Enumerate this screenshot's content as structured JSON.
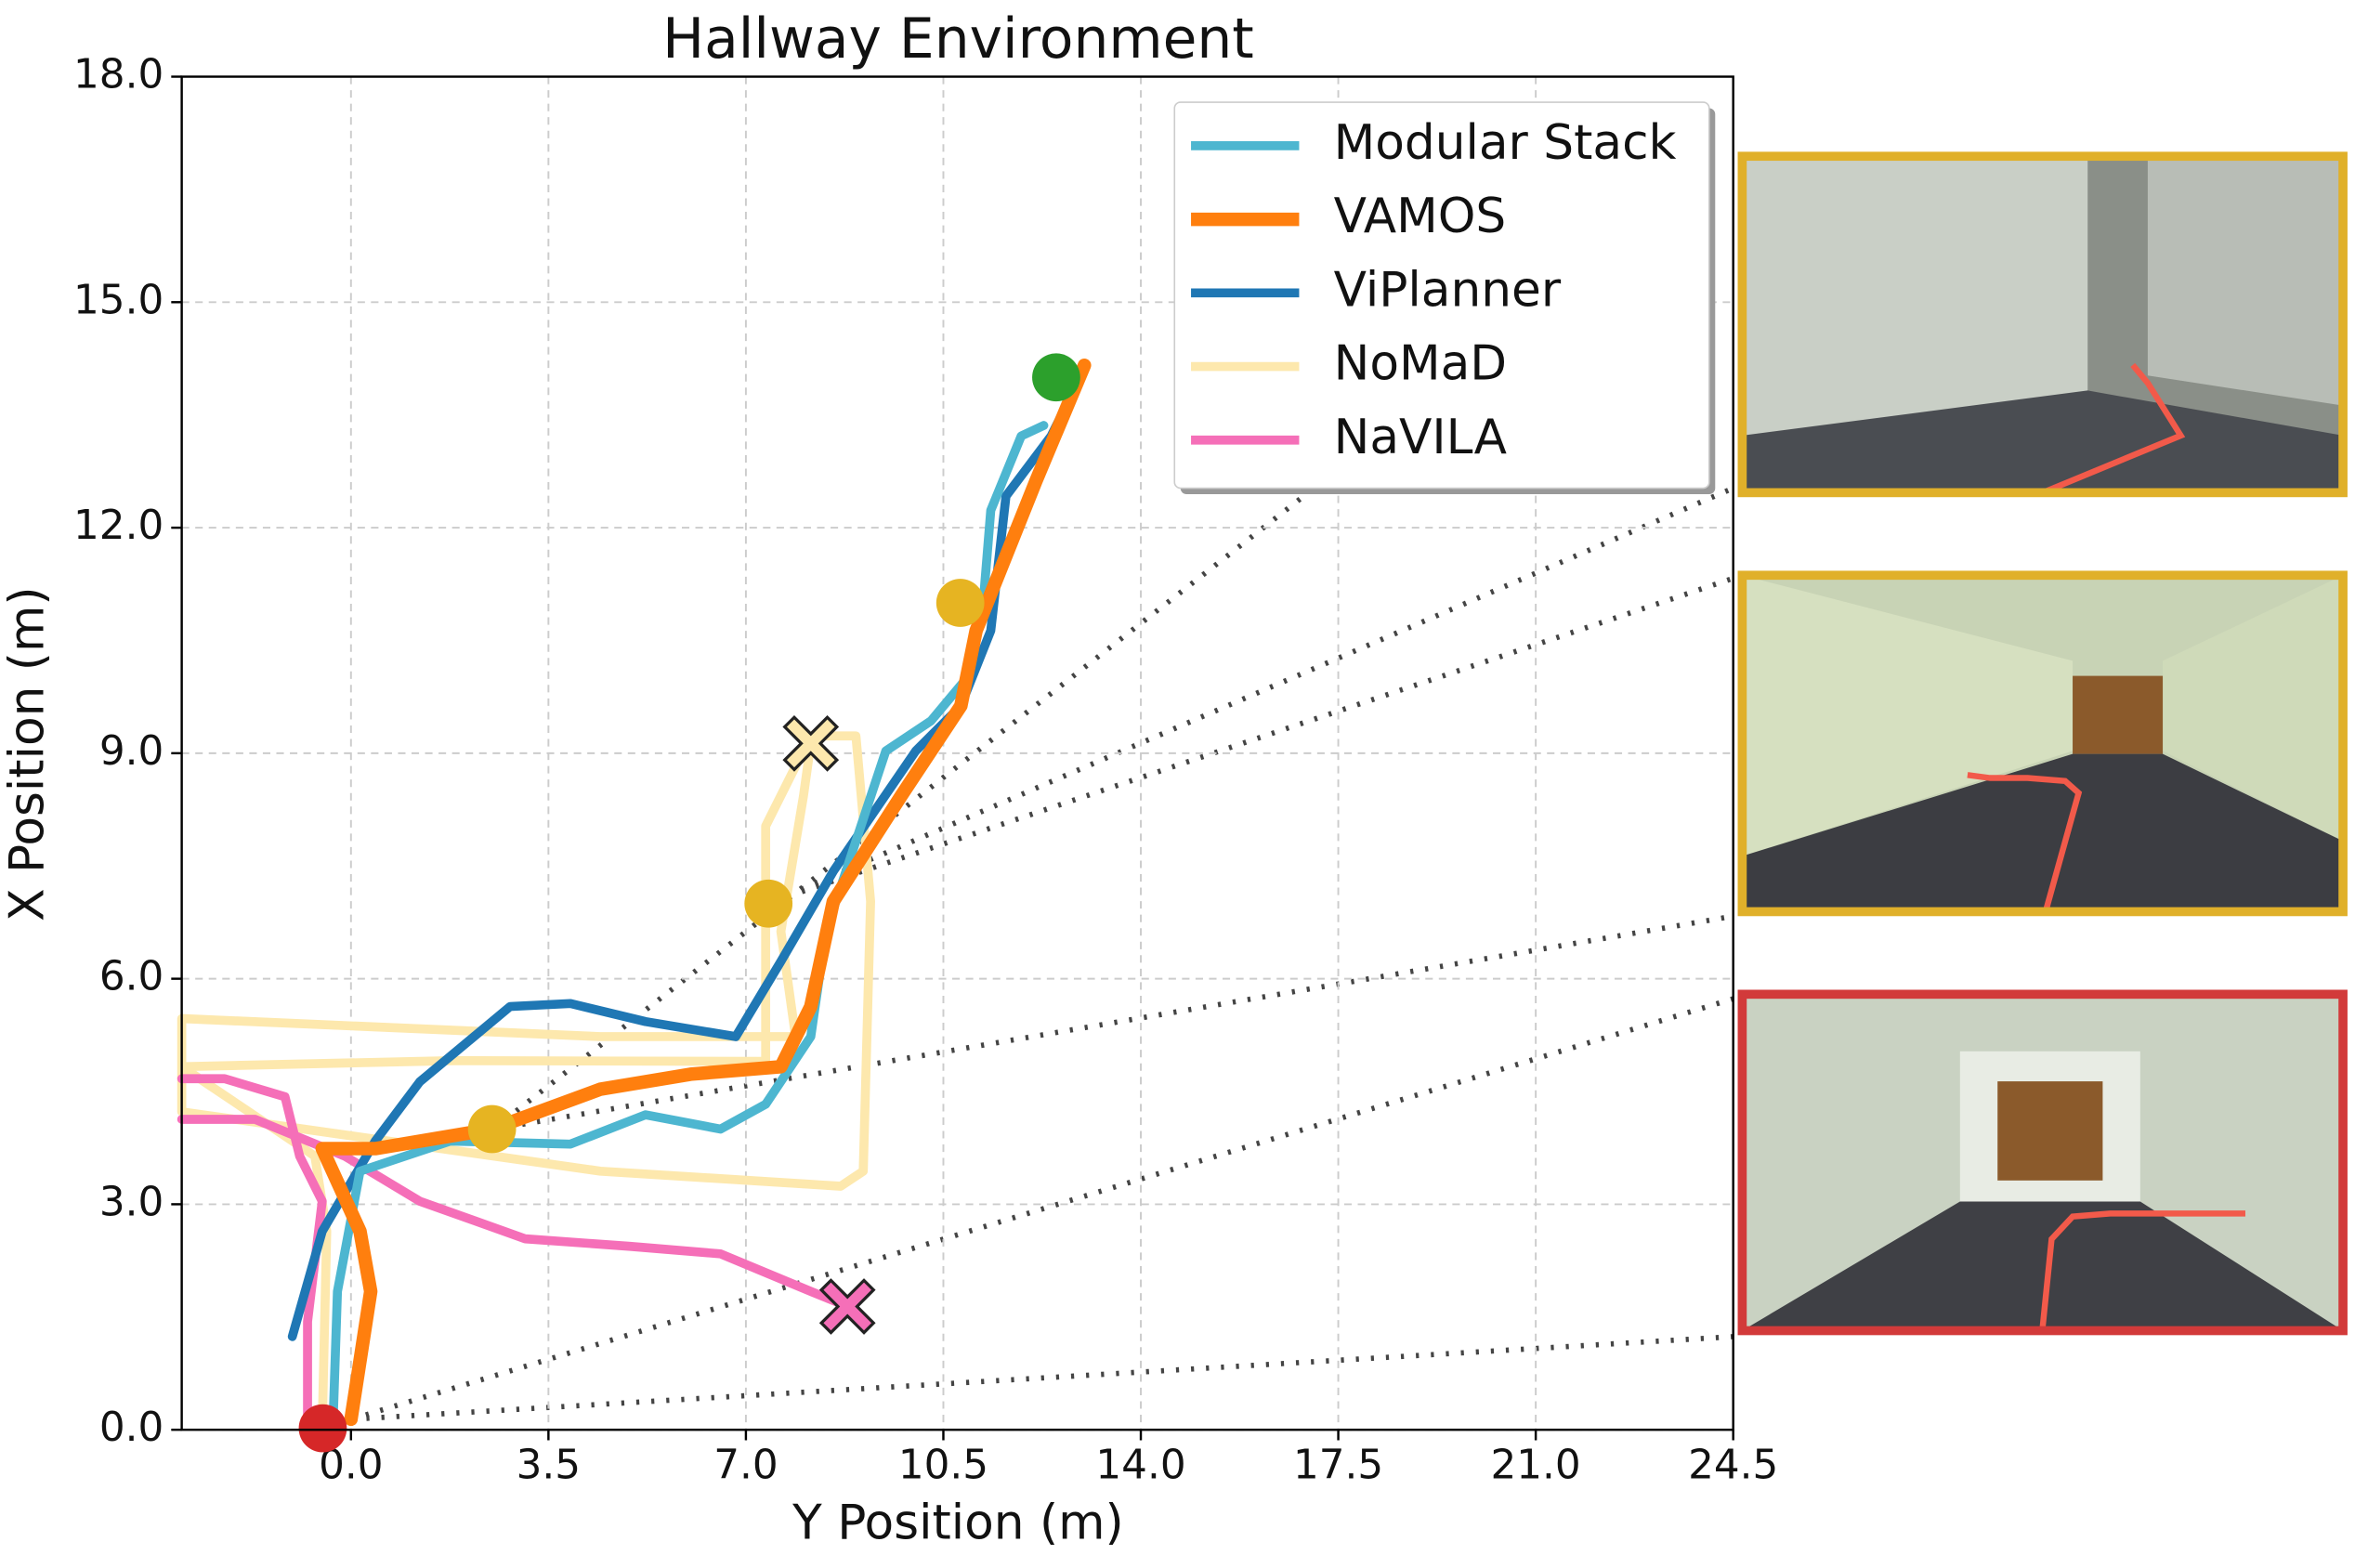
{
  "chart_data": {
    "type": "line",
    "title": "Hallway Environment",
    "xlabel": "Y Position (m)",
    "ylabel": "X Position (m)",
    "xlim": [
      -3.0,
      24.5
    ],
    "ylim": [
      0.0,
      18.0
    ],
    "xticks": [
      {
        "value": 0,
        "label": "0.0"
      },
      {
        "value": 3.5,
        "label": "3.5"
      },
      {
        "value": 7,
        "label": "7.0"
      },
      {
        "value": 10.5,
        "label": "10.5"
      },
      {
        "value": 14,
        "label": "14.0"
      },
      {
        "value": 17.5,
        "label": "17.5"
      },
      {
        "value": 21,
        "label": "21.0"
      },
      {
        "value": 24.5,
        "label": "24.5"
      }
    ],
    "yticks": [
      {
        "value": 0,
        "label": "0.0"
      },
      {
        "value": 3,
        "label": "3.0"
      },
      {
        "value": 6,
        "label": "6.0"
      },
      {
        "value": 9,
        "label": "9.0"
      },
      {
        "value": 12,
        "label": "12.0"
      },
      {
        "value": 15,
        "label": "15.0"
      },
      {
        "value": 18,
        "label": "18.0"
      }
    ],
    "grid": true,
    "legend": "upper right",
    "series": [
      {
        "name": "Modular Stack",
        "color": "#4db6d0",
        "width": 6,
        "x": [
          -0.32,
          -0.24,
          0.16,
          1.76,
          3.89,
          5.22,
          6.55,
          7.35,
          8.15,
          8.42,
          8.95,
          9.48,
          10.28,
          10.95,
          11.21,
          11.34,
          11.88,
          12.28
        ],
        "values": [
          0.04,
          1.84,
          3.44,
          3.84,
          3.8,
          4.19,
          4.0,
          4.33,
          5.23,
          6.63,
          7.83,
          9.03,
          9.43,
          10.03,
          11.03,
          12.23,
          13.22,
          13.36
        ]
      },
      {
        "name": "VAMOS",
        "color": "#ff7f0e",
        "width": 9,
        "x": [
          0.0,
          0.35,
          0.16,
          -0.51,
          0.43,
          2.5,
          4.42,
          6.02,
          7.62,
          8.15,
          8.55,
          9.75,
          10.81,
          11.08,
          12.14,
          13.0
        ],
        "values": [
          0.14,
          1.84,
          2.64,
          3.74,
          3.74,
          4.0,
          4.53,
          4.73,
          4.83,
          5.63,
          7.03,
          8.43,
          9.63,
          10.63,
          12.62,
          14.16
        ]
      },
      {
        "name": "ViPlanner",
        "color": "#1f77b4",
        "width": 6,
        "x": [
          -1.04,
          -0.51,
          0.43,
          1.22,
          2.82,
          3.89,
          5.22,
          6.82,
          7.62,
          8.55,
          10.01,
          10.81,
          11.34,
          11.61,
          12.41,
          12.94
        ],
        "values": [
          1.24,
          2.64,
          3.84,
          4.63,
          5.63,
          5.67,
          5.43,
          5.23,
          6.23,
          7.43,
          9.03,
          9.63,
          10.63,
          12.42,
          13.22,
          14.02
        ]
      },
      {
        "name": "NoMaD",
        "color": "#fde8ad",
        "width": 6,
        "x": [
          -0.51,
          -0.43,
          -0.64,
          -3.0,
          1.76,
          7.35,
          7.35,
          8.15,
          8.95,
          9.21,
          9.08,
          8.68,
          4.42,
          -3.0,
          -3.0,
          4.42,
          7.88,
          7.62,
          8.02,
          8.15
        ],
        "values": [
          0.04,
          2.64,
          3.64,
          4.83,
          4.91,
          4.9,
          8.03,
          9.23,
          9.23,
          7.03,
          3.44,
          3.24,
          3.44,
          4.23,
          5.47,
          5.23,
          5.23,
          6.63,
          8.43,
          9.13
        ]
      },
      {
        "name": "NaVILA",
        "color": "#f56fb8",
        "width": 6,
        "x": [
          -3.0,
          -2.24,
          -1.17,
          -0.91,
          -0.51,
          -0.77,
          -0.77,
          null,
          -3.0,
          -1.7,
          -0.11,
          1.22,
          3.09,
          4.95,
          6.55,
          8.15,
          8.81
        ],
        "values": [
          4.67,
          4.67,
          4.43,
          3.64,
          3.04,
          1.44,
          0.14,
          null,
          4.13,
          4.13,
          3.64,
          3.04,
          2.54,
          2.44,
          2.34,
          1.84,
          1.64
        ]
      }
    ],
    "markers": [
      {
        "x": -0.5,
        "y": 0.02,
        "color": "#d62728",
        "shape": "circle"
      },
      {
        "x": 12.5,
        "y": 14.0,
        "color": "#2ca02c",
        "shape": "circle"
      },
      {
        "x": 2.5,
        "y": 4.0,
        "color": "#e6b422",
        "shape": "circle"
      },
      {
        "x": 7.4,
        "y": 7.0,
        "color": "#e6b422",
        "shape": "circle"
      },
      {
        "x": 10.8,
        "y": 11.0,
        "color": "#e6b422",
        "shape": "circle"
      },
      {
        "x": 8.15,
        "y": 9.13,
        "color": "#fde8ad",
        "shape": "cross"
      },
      {
        "x": 8.8,
        "y": 1.64,
        "color": "#f56fb8",
        "shape": "cross"
      }
    ]
  }
}
